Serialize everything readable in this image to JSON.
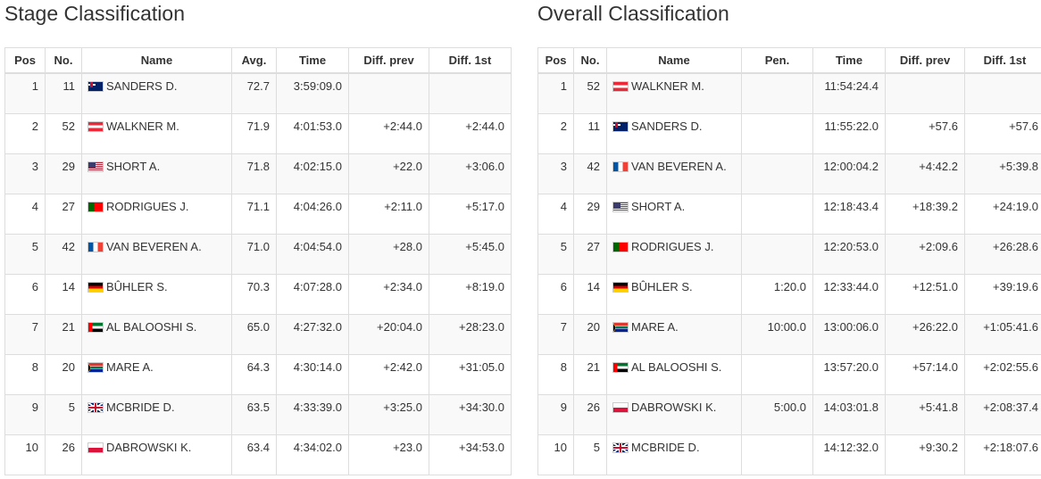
{
  "stage": {
    "title": "Stage Classification",
    "columns": [
      "Pos",
      "No.",
      "Name",
      "Avg.",
      "Time",
      "Diff. prev",
      "Diff. 1st"
    ],
    "rows": [
      [
        "1",
        "11",
        "SANDERS D.",
        "72.7",
        "3:59:09.0",
        null,
        null
      ],
      [
        "2",
        "52",
        "WALKNER M.",
        "71.9",
        "4:01:53.0",
        "+2:44.0",
        "+2:44.0"
      ],
      [
        "3",
        "29",
        "SHORT A.",
        "71.8",
        "4:02:15.0",
        "+22.0",
        "+3:06.0"
      ],
      [
        "4",
        "27",
        "RODRIGUES J.",
        "71.1",
        "4:04:26.0",
        "+2:11.0",
        "+5:17.0"
      ],
      [
        "5",
        "42",
        "VAN BEVEREN A.",
        "71.0",
        "4:04:54.0",
        "+28.0",
        "+5:45.0"
      ],
      [
        "6",
        "14",
        "BÛHLER S.",
        "70.3",
        "4:07:28.0",
        "+2:34.0",
        "+8:19.0"
      ],
      [
        "7",
        "21",
        "AL BALOOSHI S.",
        "65.0",
        "4:27:32.0",
        "+20:04.0",
        "+28:23.0"
      ],
      [
        "8",
        "20",
        "MARE A.",
        "64.3",
        "4:30:14.0",
        "+2:42.0",
        "+31:05.0"
      ],
      [
        "9",
        "5",
        "MCBRIDE D.",
        "63.5",
        "4:33:39.0",
        "+3:25.0",
        "+34:30.0"
      ],
      [
        "10",
        "26",
        "DABROWSKI K.",
        "63.4",
        "4:34:02.0",
        "+23.0",
        "+34:53.0"
      ]
    ]
  },
  "overall": {
    "title": "Overall Classification",
    "columns": [
      "Pos",
      "No.",
      "Name",
      "Pen.",
      "Time",
      "Diff. prev",
      "Diff. 1st"
    ],
    "rows": [
      [
        "1",
        "52",
        "WALKNER M.",
        null,
        "11:54:24.4",
        null,
        null
      ],
      [
        "2",
        "11",
        "SANDERS D.",
        null,
        "11:55:22.0",
        "+57.6",
        "+57.6"
      ],
      [
        "3",
        "42",
        "VAN BEVEREN A.",
        null,
        "12:00:04.2",
        "+4:42.2",
        "+5:39.8"
      ],
      [
        "4",
        "29",
        "SHORT A.",
        null,
        "12:18:43.4",
        "+18:39.2",
        "+24:19.0"
      ],
      [
        "5",
        "27",
        "RODRIGUES J.",
        null,
        "12:20:53.0",
        "+2:09.6",
        "+26:28.6"
      ],
      [
        "6",
        "14",
        "BÛHLER S.",
        "1:20.0",
        "12:33:44.0",
        "+12:51.0",
        "+39:19.6"
      ],
      [
        "7",
        "20",
        "MARE A.",
        "10:00.0",
        "13:00:06.0",
        "+26:22.0",
        "+1:05:41.6"
      ],
      [
        "8",
        "21",
        "AL BALOOSHI S.",
        null,
        "13:57:20.0",
        "+57:14.0",
        "+2:02:55.6"
      ],
      [
        "9",
        "26",
        "DABROWSKI K.",
        "5:00.0",
        "14:03:01.8",
        "+5:41.8",
        "+2:08:37.4"
      ],
      [
        "10",
        "5",
        "MCBRIDE D.",
        null,
        "14:12:32.0",
        "+9:30.2",
        "+2:18:07.6"
      ]
    ]
  }
}
